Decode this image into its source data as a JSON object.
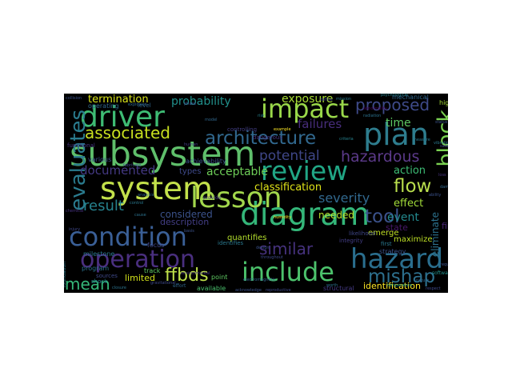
{
  "wordcloud": {
    "background": "#000000",
    "words": [
      {
        "text": "subsystem",
        "color": "#5fbf6b"
      },
      {
        "text": "system",
        "color": "#c3e14b"
      },
      {
        "text": "diagram",
        "color": "#34b679"
      },
      {
        "text": "condition",
        "color": "#3a5f96"
      },
      {
        "text": "lesson",
        "color": "#a2d74c"
      },
      {
        "text": "operation",
        "color": "#4a2f7f"
      },
      {
        "text": "include",
        "color": "#4cc26c"
      },
      {
        "text": "hazard",
        "color": "#2a6e8e"
      },
      {
        "text": "review",
        "color": "#21a685"
      },
      {
        "text": "plan",
        "color": "#2e7d8e"
      },
      {
        "text": "driver",
        "color": "#3ebc74"
      },
      {
        "text": "impact",
        "color": "#9ad84a"
      },
      {
        "text": "block",
        "color": "#7ad151"
      },
      {
        "text": "evaluates",
        "color": "#2a7b8e"
      },
      {
        "text": "architecture",
        "color": "#31688e"
      },
      {
        "text": "ffbds",
        "color": "#bfe04a"
      },
      {
        "text": "mishap",
        "color": "#2d708e"
      },
      {
        "text": "flow",
        "color": "#b9de4d"
      },
      {
        "text": "tool",
        "color": "#3b528b"
      },
      {
        "text": "associated",
        "color": "#c8e020"
      },
      {
        "text": "similar",
        "color": "#46327e"
      },
      {
        "text": "mean",
        "color": "#35b779"
      },
      {
        "text": "hazardous",
        "color": "#5c3a8a"
      },
      {
        "text": "result",
        "color": "#26828e"
      },
      {
        "text": "proposed",
        "color": "#3e4a89"
      },
      {
        "text": "probability",
        "color": "#21918c"
      },
      {
        "text": "potential",
        "color": "#3f4788"
      },
      {
        "text": "documented",
        "color": "#443983"
      },
      {
        "text": "severity",
        "color": "#31688e"
      },
      {
        "text": "exposure",
        "color": "#a8db34"
      },
      {
        "text": "termination",
        "color": "#d8e219"
      },
      {
        "text": "acceptable",
        "color": "#6ece58"
      },
      {
        "text": "failures",
        "color": "#472d7b"
      },
      {
        "text": "time",
        "color": "#5dc963"
      },
      {
        "text": "classification",
        "color": "#dfe318"
      },
      {
        "text": "eliminate",
        "color": "#2c728e"
      },
      {
        "text": "action",
        "color": "#3dbc74"
      },
      {
        "text": "effect",
        "color": "#a0da39"
      },
      {
        "text": "event",
        "color": "#23898e"
      },
      {
        "text": "state",
        "color": "#48186a"
      },
      {
        "text": "needed",
        "color": "#b5de2b"
      },
      {
        "text": "considered",
        "color": "#3b528b"
      },
      {
        "text": "description",
        "color": "#433e85"
      },
      {
        "text": "quantifies",
        "color": "#b2dd2d"
      },
      {
        "text": "limited",
        "color": "#d2e21b"
      },
      {
        "text": "identification",
        "color": "#fde725"
      },
      {
        "text": "maximize",
        "color": "#bddf26"
      },
      {
        "text": "fire",
        "color": "#482475"
      },
      {
        "text": "emerge",
        "color": "#c0df25"
      },
      {
        "text": "types",
        "color": "#3e4989"
      },
      {
        "text": "operating",
        "color": "#31688e"
      },
      {
        "text": "various",
        "color": "#3b528b"
      },
      {
        "text": "program",
        "color": "#2c728e"
      },
      {
        "text": "milestone",
        "color": "#2a788e"
      },
      {
        "text": "functional",
        "color": "#46337f"
      },
      {
        "text": "achievability",
        "color": "#3b528b"
      },
      {
        "text": "focus",
        "color": "#3f4788"
      },
      {
        "text": "track",
        "color": "#5ec962"
      },
      {
        "text": "sources",
        "color": "#3e4989"
      },
      {
        "text": "available",
        "color": "#4ac16d"
      },
      {
        "text": "structural",
        "color": "#443983"
      },
      {
        "text": "strategy",
        "color": "#3b528b"
      },
      {
        "text": "mechanical",
        "color": "#31688e"
      },
      {
        "text": "high",
        "color": "#a5db36"
      },
      {
        "text": "level",
        "color": "#31688e"
      },
      {
        "text": "point",
        "color": "#5ec962"
      },
      {
        "text": "dangerous",
        "color": "#46337f"
      },
      {
        "text": "integrity",
        "color": "#433e85"
      },
      {
        "text": "controlling",
        "color": "#433e85"
      },
      {
        "text": "likelihood",
        "color": "#3f4788"
      },
      {
        "text": "first",
        "color": "#2a788e"
      },
      {
        "text": "shock",
        "color": "#26828e"
      },
      {
        "text": "identifies",
        "color": "#2a788e"
      },
      {
        "text": "effort",
        "color": "#31688e"
      },
      {
        "text": "software",
        "color": "#21918c"
      },
      {
        "text": "foundation",
        "color": "#2a788e"
      },
      {
        "text": "psychological",
        "color": "#26828e"
      },
      {
        "text": "collision",
        "color": "#3b528b"
      },
      {
        "text": "temperature",
        "color": "#1f9e89"
      },
      {
        "text": "example",
        "color": "#fde725"
      },
      {
        "text": "gravitational",
        "color": "#3e4989"
      },
      {
        "text": "electromagnetic",
        "color": "#31688e"
      },
      {
        "text": "provide",
        "color": "#443983"
      },
      {
        "text": "closure",
        "color": "#2c728e"
      },
      {
        "text": "acknowledge",
        "color": "#3b528b"
      },
      {
        "text": "reproductive",
        "color": "#3e4989"
      },
      {
        "text": "environmental",
        "color": "#46337f"
      },
      {
        "text": "vibration",
        "color": "#2a788e"
      },
      {
        "text": "fabricate",
        "color": "#3f4788"
      },
      {
        "text": "explosion",
        "color": "#31688e"
      },
      {
        "text": "radiation",
        "color": "#2c728e"
      },
      {
        "text": "humidity",
        "color": "#fde725"
      },
      {
        "text": "ability",
        "color": "#3b528b"
      },
      {
        "text": "abnormality",
        "color": "#440154"
      },
      {
        "text": "throughout",
        "color": "#3e4989"
      },
      {
        "text": "measure",
        "color": "#2a788e"
      },
      {
        "text": "criteria",
        "color": "#26828e"
      },
      {
        "text": "nature",
        "color": "#31688e"
      },
      {
        "text": "basis",
        "color": "#3b528b"
      },
      {
        "text": "respect",
        "color": "#3e4989"
      },
      {
        "text": "chemical",
        "color": "#46337f"
      },
      {
        "text": "worth",
        "color": "#2c728e"
      },
      {
        "text": "analysis",
        "color": "#31688e"
      },
      {
        "text": "status",
        "color": "#3b528b"
      },
      {
        "text": "mission",
        "color": "#2a788e"
      },
      {
        "text": "safety",
        "color": "#3f4788"
      },
      {
        "text": "human",
        "color": "#433e85"
      },
      {
        "text": "define",
        "color": "#3e4989"
      },
      {
        "text": "require",
        "color": "#3b528b"
      },
      {
        "text": "control",
        "color": "#2a788e"
      },
      {
        "text": "model",
        "color": "#31688e"
      },
      {
        "text": "risk",
        "color": "#26828e"
      },
      {
        "text": "design",
        "color": "#3b528b"
      },
      {
        "text": "phase",
        "color": "#3e4989"
      },
      {
        "text": "loss",
        "color": "#46337f"
      },
      {
        "text": "cause",
        "color": "#2c728e"
      },
      {
        "text": "injury",
        "color": "#3f4788"
      },
      {
        "text": "damage",
        "color": "#31688e"
      }
    ]
  }
}
